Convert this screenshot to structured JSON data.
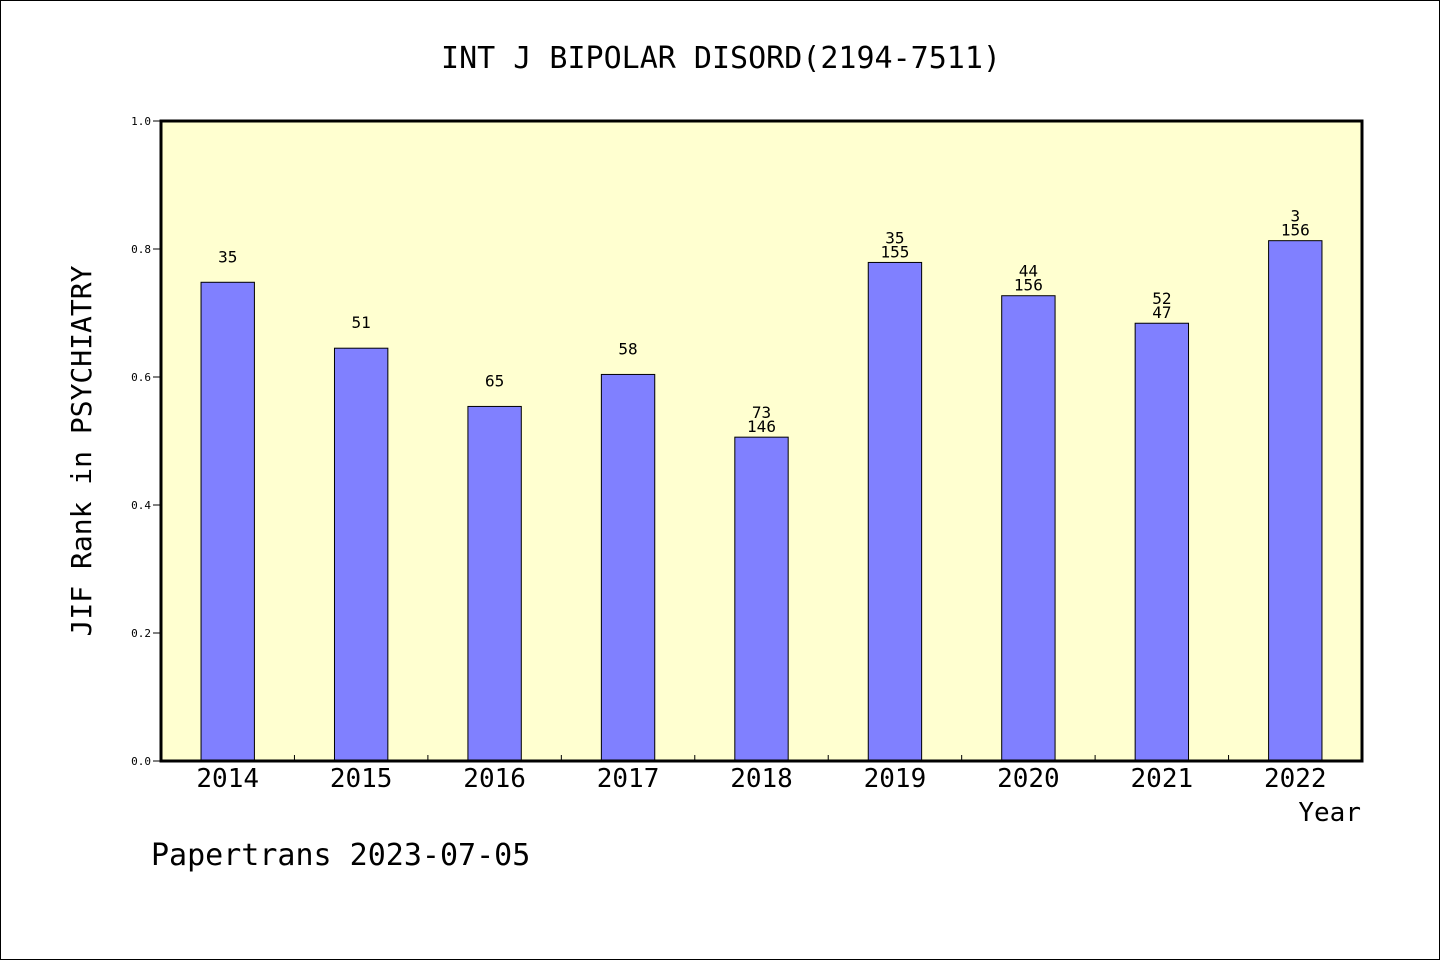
{
  "chart_data": {
    "type": "bar",
    "title": "INT J BIPOLAR DISORD(2194-7511)",
    "xlabel": "Year",
    "ylabel": "JIF Rank in PSYCHIATRY",
    "ylim": [
      0,
      1.0
    ],
    "yticks": [
      "0.0",
      "0.2",
      "0.4",
      "0.6",
      "0.8",
      "1.0"
    ],
    "grid": false,
    "categories": [
      "2014",
      "2015",
      "2016",
      "2017",
      "2018",
      "2019",
      "2020",
      "2021",
      "2022"
    ],
    "values": [
      0.748,
      0.645,
      0.554,
      0.604,
      0.506,
      0.779,
      0.727,
      0.684,
      0.813
    ],
    "bar_labels": [
      [
        "35"
      ],
      [
        "51"
      ],
      [
        "65"
      ],
      [
        "58"
      ],
      [
        "73",
        "146"
      ],
      [
        "35",
        "155"
      ],
      [
        "44",
        "156"
      ],
      [
        "52",
        "47"
      ],
      [
        "3",
        "156"
      ]
    ],
    "colors": {
      "bar_fill": "#8080ff",
      "plot_background": "#ffffd0",
      "axis": "#000000"
    }
  },
  "footer": {
    "text": "Papertrans 2023-07-05"
  }
}
